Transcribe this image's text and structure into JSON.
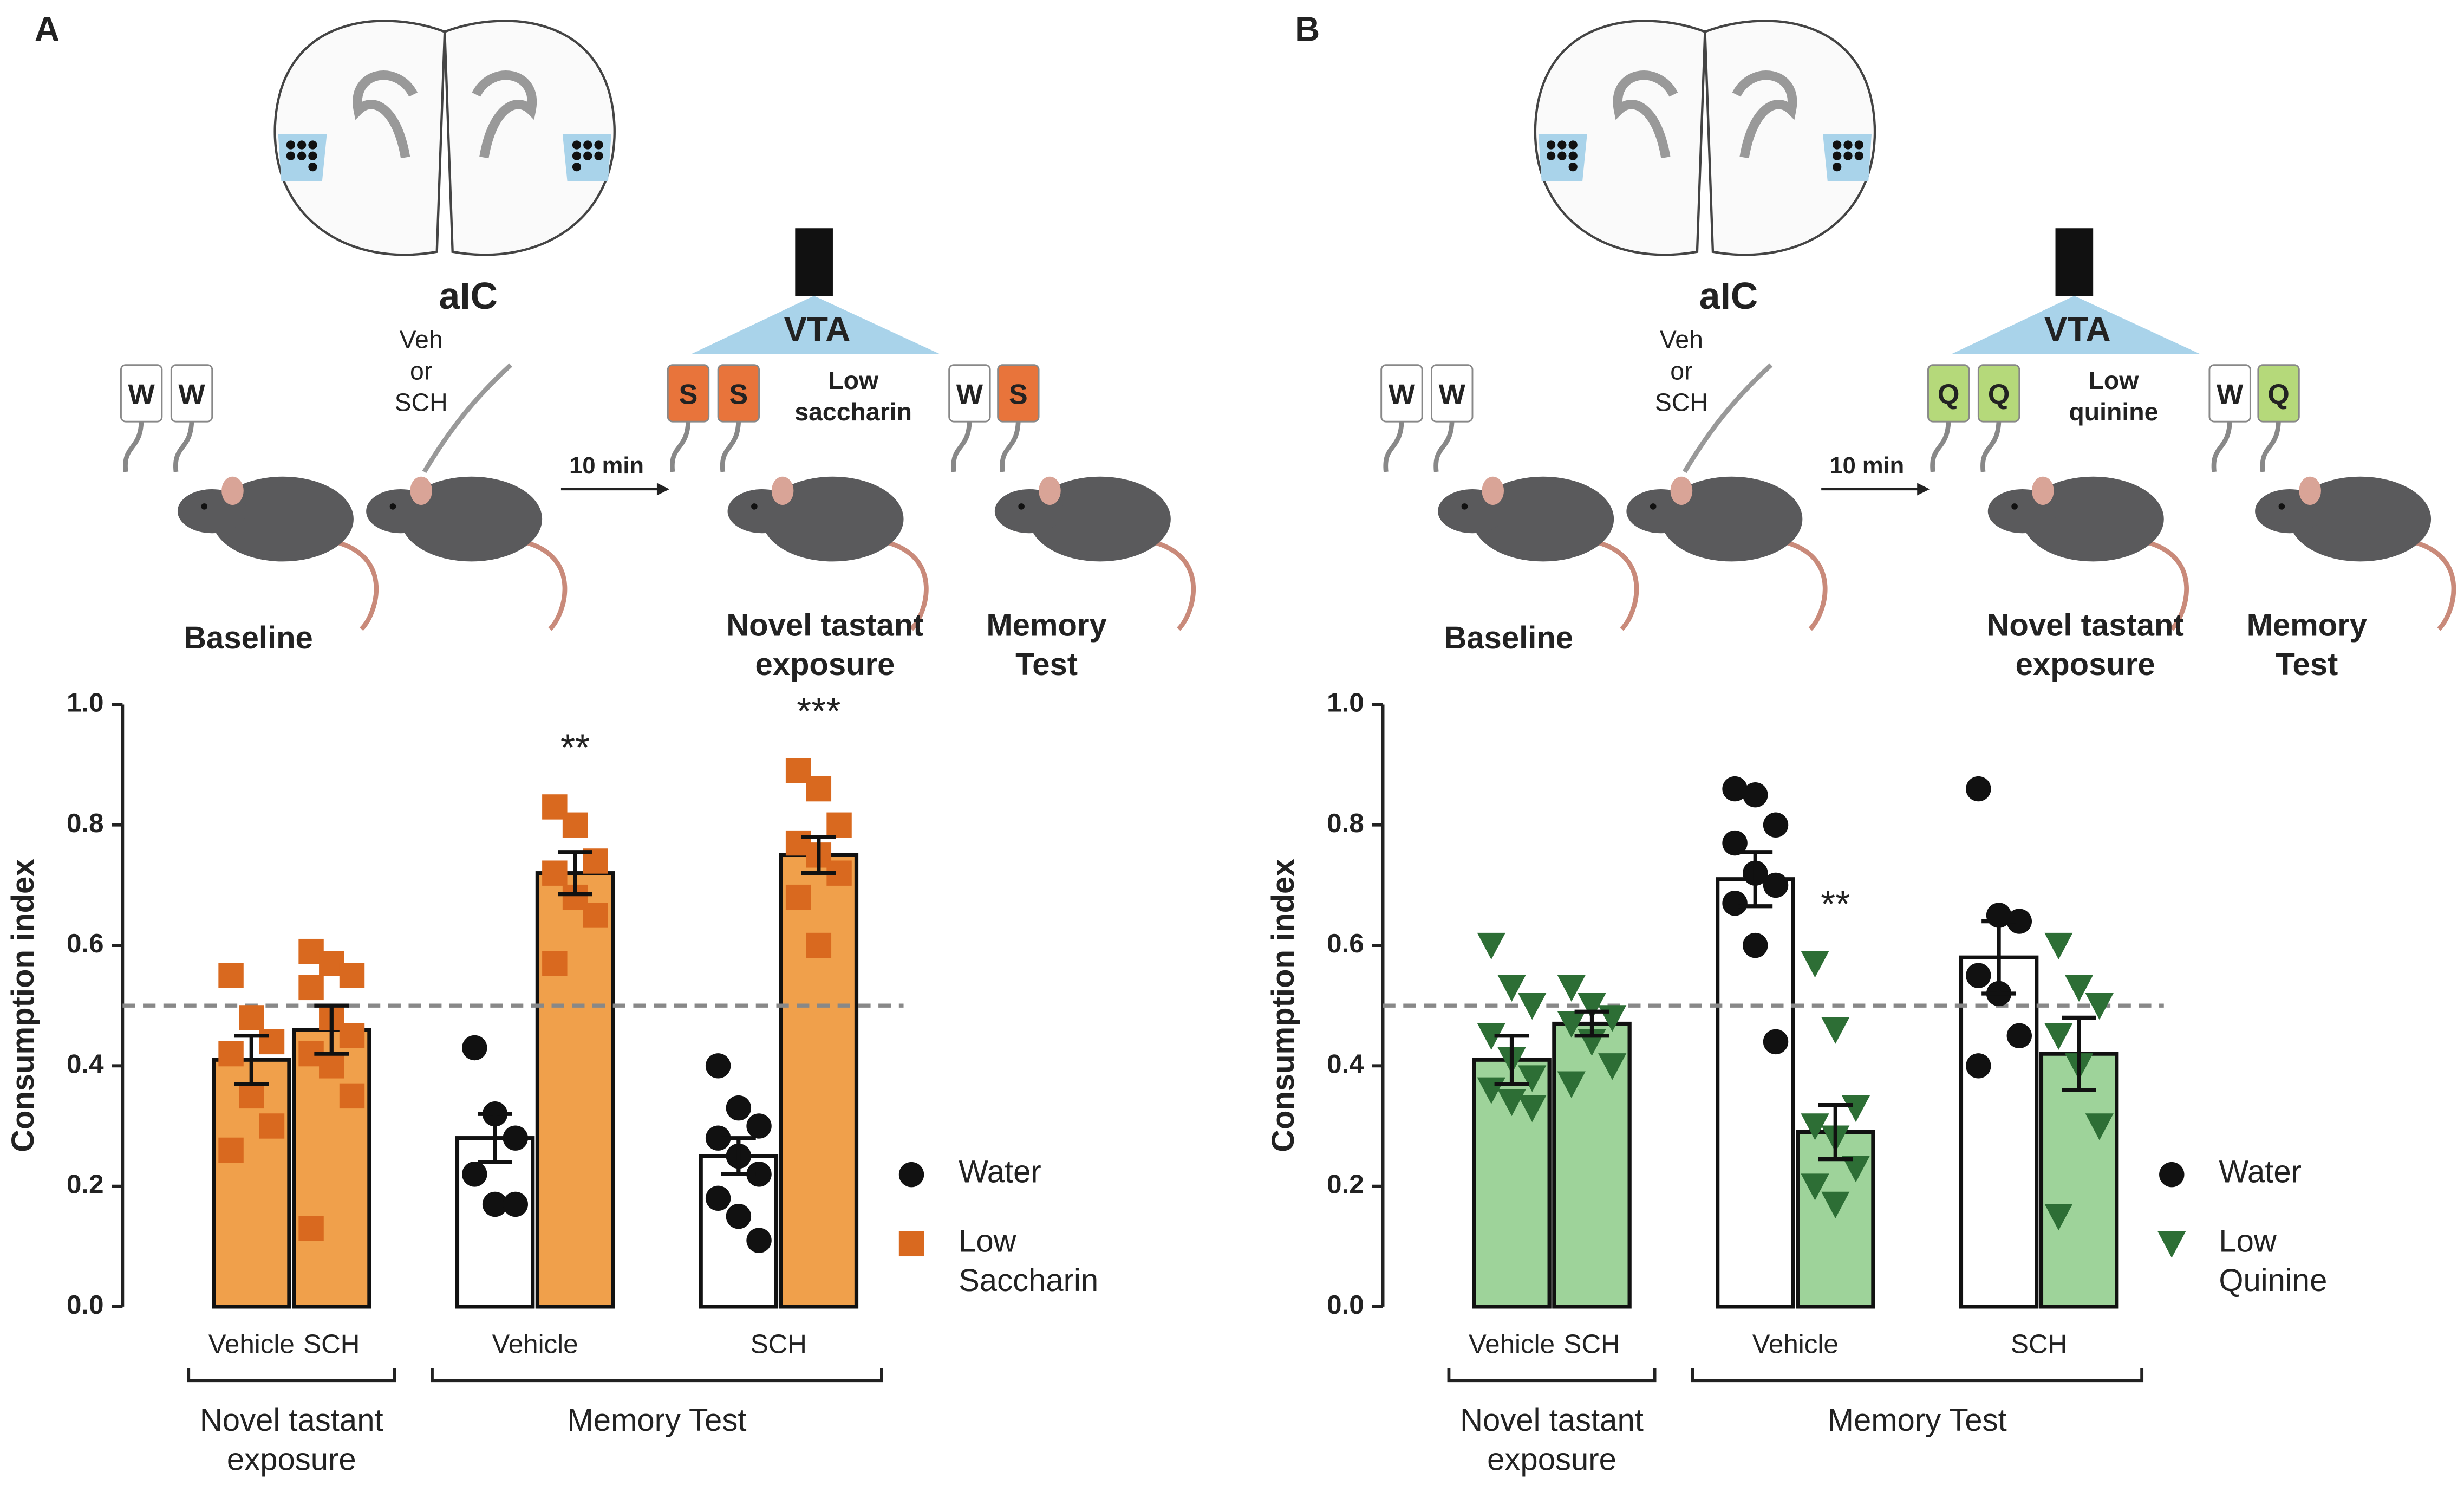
{
  "chart_data": [
    {
      "type": "bar",
      "panel_label": "A",
      "schematic": {
        "region": "aIC",
        "treatment": [
          "Veh",
          "or",
          "SCH"
        ],
        "delay": "10 min",
        "target": "VTA",
        "tastant": [
          "Low",
          "saccharin"
        ],
        "stages": [
          {
            "lines": [
              "Baseline"
            ],
            "bottles": [
              "W",
              "W"
            ]
          },
          {
            "lines": [
              "Novel tastant",
              "exposure"
            ],
            "bottles": [
              "S",
              "S"
            ]
          },
          {
            "lines": [
              "Memory",
              "Test"
            ],
            "bottles": [
              "W",
              "S"
            ]
          }
        ],
        "bottle_color": "#e8743b"
      },
      "ylabel": "Consumption index",
      "ylim": [
        0,
        1
      ],
      "yticks": [
        {
          "value": 0,
          "label": "0.0"
        },
        0.2,
        0.4,
        0.6,
        0.8,
        {
          "value": 1,
          "label": "1.0"
        }
      ],
      "reference_line": 0.5,
      "series": [
        {
          "name": "Water",
          "color": "#ffffff",
          "point_color": "#111111",
          "marker": "circle"
        },
        {
          "name": "Low Saccharin",
          "color": "#f0a04b",
          "point_color": "#d9691f",
          "marker": "square"
        }
      ],
      "groups": [
        {
          "label": "Novel tastant exposure",
          "categories": [
            {
              "label": "Vehicle",
              "bars": [
                {
                  "series": 1,
                  "value": 0.41,
                  "error": 0.04,
                  "points": [
                    0.55,
                    0.48,
                    0.44,
                    0.42,
                    0.35,
                    0.3,
                    0.26
                  ]
                }
              ]
            },
            {
              "label": "SCH",
              "bars": [
                {
                  "series": 1,
                  "value": 0.46,
                  "error": 0.04,
                  "points": [
                    0.59,
                    0.57,
                    0.55,
                    0.53,
                    0.48,
                    0.45,
                    0.42,
                    0.4,
                    0.35,
                    0.13
                  ]
                }
              ]
            }
          ]
        },
        {
          "label": "Memory Test",
          "categories": [
            {
              "label": "Vehicle",
              "bars": [
                {
                  "series": 0,
                  "value": 0.28,
                  "error": 0.04,
                  "points": [
                    0.43,
                    0.32,
                    0.28,
                    0.22,
                    0.17,
                    0.17
                  ]
                },
                {
                  "series": 1,
                  "value": 0.72,
                  "error": 0.035,
                  "points": [
                    0.83,
                    0.8,
                    0.74,
                    0.72,
                    0.68,
                    0.65,
                    0.57
                  ],
                  "annotation": "**"
                }
              ]
            },
            {
              "label": "SCH",
              "bars": [
                {
                  "series": 0,
                  "value": 0.25,
                  "error": 0.03,
                  "points": [
                    0.4,
                    0.33,
                    0.3,
                    0.28,
                    0.25,
                    0.22,
                    0.18,
                    0.15,
                    0.11
                  ]
                },
                {
                  "series": 1,
                  "value": 0.75,
                  "error": 0.03,
                  "points": [
                    0.89,
                    0.86,
                    0.8,
                    0.77,
                    0.75,
                    0.72,
                    0.68,
                    0.6
                  ],
                  "annotation": "***"
                }
              ]
            }
          ]
        }
      ]
    },
    {
      "type": "bar",
      "panel_label": "B",
      "schematic": {
        "region": "aIC",
        "treatment": [
          "Veh",
          "or",
          "SCH"
        ],
        "delay": "10 min",
        "target": "VTA",
        "tastant": [
          "Low",
          "quinine"
        ],
        "stages": [
          {
            "lines": [
              "Baseline"
            ],
            "bottles": [
              "W",
              "W"
            ]
          },
          {
            "lines": [
              "Novel tastant",
              "exposure"
            ],
            "bottles": [
              "Q",
              "Q"
            ]
          },
          {
            "lines": [
              "Memory",
              "Test"
            ],
            "bottles": [
              "W",
              "Q"
            ]
          }
        ],
        "bottle_color": "#b5d97a"
      },
      "ylabel": "Consumption index",
      "ylim": [
        0,
        1
      ],
      "yticks": [
        {
          "value": 0,
          "label": "0.0"
        },
        0.2,
        0.4,
        0.6,
        0.8,
        {
          "value": 1,
          "label": "1.0"
        }
      ],
      "reference_line": 0.5,
      "series": [
        {
          "name": "Water",
          "color": "#ffffff",
          "point_color": "#111111",
          "marker": "circle"
        },
        {
          "name": "Low Quinine",
          "color": "#9ed39a",
          "point_color": "#2d6e35",
          "marker": "triangle"
        }
      ],
      "groups": [
        {
          "label": "Novel tastant exposure",
          "categories": [
            {
              "label": "Vehicle",
              "bars": [
                {
                  "series": 1,
                  "value": 0.41,
                  "error": 0.04,
                  "points": [
                    0.6,
                    0.53,
                    0.5,
                    0.45,
                    0.41,
                    0.38,
                    0.36,
                    0.34,
                    0.33
                  ]
                }
              ]
            },
            {
              "label": "SCH",
              "bars": [
                {
                  "series": 1,
                  "value": 0.47,
                  "error": 0.02,
                  "points": [
                    0.53,
                    0.5,
                    0.48,
                    0.47,
                    0.44,
                    0.4,
                    0.37
                  ]
                }
              ]
            }
          ]
        },
        {
          "label": "Memory Test",
          "categories": [
            {
              "label": "Vehicle",
              "bars": [
                {
                  "series": 0,
                  "value": 0.71,
                  "error": 0.045,
                  "points": [
                    0.86,
                    0.85,
                    0.8,
                    0.77,
                    0.72,
                    0.7,
                    0.67,
                    0.6,
                    0.44
                  ]
                },
                {
                  "series": 1,
                  "value": 0.29,
                  "error": 0.045,
                  "points": [
                    0.57,
                    0.46,
                    0.33,
                    0.3,
                    0.28,
                    0.23,
                    0.2,
                    0.17
                  ],
                  "annotation": "**"
                }
              ]
            },
            {
              "label": "SCH",
              "bars": [
                {
                  "series": 0,
                  "value": 0.58,
                  "error": 0.06,
                  "points": [
                    0.86,
                    0.65,
                    0.64,
                    0.55,
                    0.52,
                    0.45,
                    0.4
                  ]
                },
                {
                  "series": 1,
                  "value": 0.42,
                  "error": 0.06,
                  "points": [
                    0.6,
                    0.53,
                    0.5,
                    0.45,
                    0.4,
                    0.3,
                    0.15
                  ]
                }
              ]
            }
          ]
        }
      ]
    }
  ]
}
